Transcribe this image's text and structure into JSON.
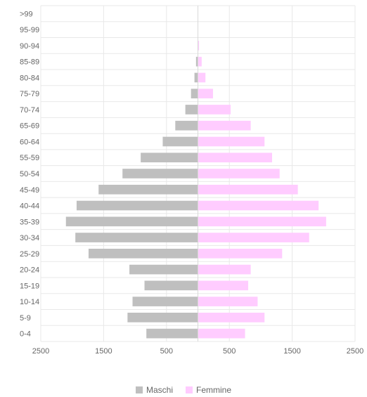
{
  "chart_data": {
    "type": "bar",
    "orientation": "horizontal",
    "chart_style": "population-pyramid",
    "categories": [
      "0-4",
      "5-9",
      "10-14",
      "15-19",
      "20-24",
      "25-29",
      "30-34",
      "35-39",
      "40-44",
      "45-49",
      "50-54",
      "55-59",
      "60-64",
      "65-69",
      "70-74",
      "75-79",
      "80-84",
      "85-89",
      "90-94",
      "95-99",
      ">99"
    ],
    "series": [
      {
        "name": "Maschi",
        "side": "left",
        "color": "#bfbfbf",
        "values": [
          820,
          1120,
          1040,
          850,
          1090,
          1740,
          1950,
          2100,
          1930,
          1580,
          1200,
          910,
          560,
          360,
          200,
          110,
          55,
          30,
          6,
          2,
          0
        ]
      },
      {
        "name": "Femmine",
        "side": "right",
        "color": "#ffccff",
        "values": [
          750,
          1060,
          950,
          800,
          840,
          1340,
          1770,
          2040,
          1920,
          1590,
          1300,
          1180,
          1060,
          840,
          520,
          240,
          120,
          60,
          18,
          5,
          1
        ]
      }
    ],
    "x_ticks": [
      "2500",
      "1500",
      "500",
      "500",
      "1500",
      "2500"
    ],
    "xlim": [
      -2500,
      2500
    ],
    "grid": true,
    "legend_position": "bottom"
  }
}
